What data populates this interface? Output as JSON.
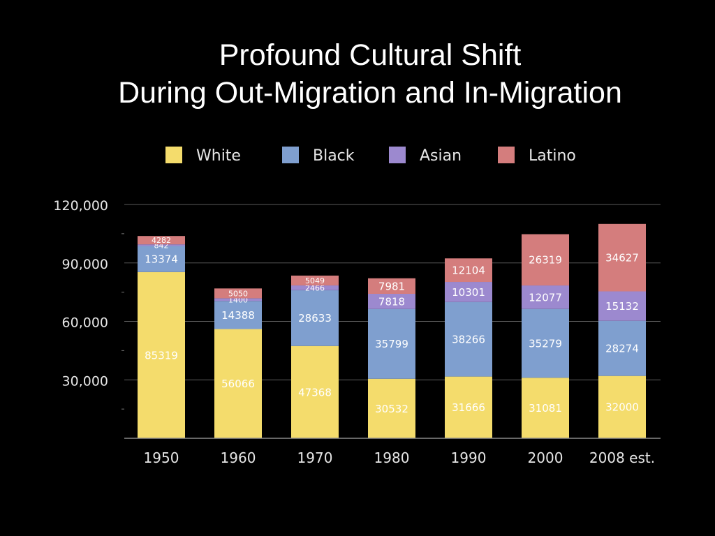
{
  "title": {
    "line1": "Profound Cultural Shift",
    "line2": "During Out-Migration and In-Migration"
  },
  "chart_data": {
    "type": "bar",
    "stacked": true,
    "categories": [
      "1950",
      "1960",
      "1970",
      "1980",
      "1990",
      "2000",
      "2008 est."
    ],
    "series": [
      {
        "name": "White",
        "color": "#f4dc6c",
        "values": [
          85319,
          56066,
          47368,
          30532,
          31666,
          31081,
          32000
        ]
      },
      {
        "name": "Black",
        "color": "#7f9fcf",
        "values": [
          13374,
          14388,
          28633,
          35799,
          38266,
          35279,
          28274
        ]
      },
      {
        "name": "Asian",
        "color": "#9c89cf",
        "values": [
          842,
          1400,
          2466,
          7818,
          10301,
          12077,
          15132
        ]
      },
      {
        "name": "Latino",
        "color": "#d47d7d",
        "values": [
          4282,
          5050,
          5049,
          7981,
          12104,
          26319,
          34627
        ]
      }
    ],
    "y_ticks": [
      "120,000",
      "90,000",
      "60,000",
      "30,000"
    ],
    "y_tick_values": [
      120000,
      90000,
      60000,
      30000
    ],
    "ylim": [
      0,
      120000
    ],
    "legend_position": "top-center",
    "grid": true
  }
}
